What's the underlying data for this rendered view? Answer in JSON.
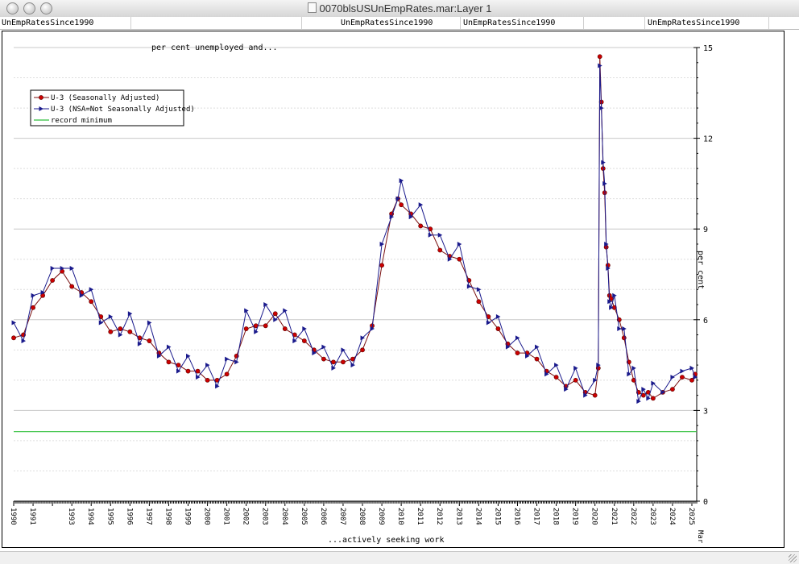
{
  "window": {
    "title": "0070blsUSUnEmpRates.mar:Layer 1"
  },
  "header_cells": [
    "UnEmpRatesSince1990",
    "",
    "UnEmpRatesSince1990",
    "UnEmpRatesSince1990",
    "",
    "UnEmpRatesSince1990"
  ],
  "chart_data": {
    "type": "line",
    "title": "per cent unemployed and...",
    "xlabel": "...actively seeking work",
    "ylabel": "per cent",
    "ylim": [
      0,
      15
    ],
    "yticks": [
      0,
      3,
      6,
      9,
      12,
      15
    ],
    "xlim": [
      1990,
      2025.25
    ],
    "year_ticks": [
      1990,
      1991,
      1993,
      1994,
      1995,
      1996,
      1997,
      1998,
      1999,
      2000,
      2001,
      2002,
      2003,
      2004,
      2005,
      2006,
      2007,
      2008,
      2009,
      2010,
      2011,
      2012,
      2013,
      2014,
      2015,
      2016,
      2017,
      2018,
      2019,
      2020,
      2021,
      2022,
      2023,
      2024,
      2025
    ],
    "x_end_label": "Mar",
    "grid": true,
    "legend_position": "top-left",
    "series": [
      {
        "name": "U-3 (Seasonally Adjusted)",
        "color": "#cc0000",
        "line_color": "#7a1010",
        "marker": "circle",
        "points": [
          [
            1990.0,
            5.4
          ],
          [
            1990.5,
            5.5
          ],
          [
            1991.0,
            6.4
          ],
          [
            1991.5,
            6.8
          ],
          [
            1992.0,
            7.3
          ],
          [
            1992.5,
            7.6
          ],
          [
            1993.0,
            7.1
          ],
          [
            1993.5,
            6.9
          ],
          [
            1994.0,
            6.6
          ],
          [
            1994.5,
            6.1
          ],
          [
            1995.0,
            5.6
          ],
          [
            1995.5,
            5.7
          ],
          [
            1996.0,
            5.6
          ],
          [
            1996.5,
            5.4
          ],
          [
            1997.0,
            5.3
          ],
          [
            1997.5,
            4.9
          ],
          [
            1998.0,
            4.6
          ],
          [
            1998.5,
            4.5
          ],
          [
            1999.0,
            4.3
          ],
          [
            1999.5,
            4.3
          ],
          [
            2000.0,
            4.0
          ],
          [
            2000.5,
            4.0
          ],
          [
            2001.0,
            4.2
          ],
          [
            2001.5,
            4.8
          ],
          [
            2002.0,
            5.7
          ],
          [
            2002.5,
            5.8
          ],
          [
            2003.0,
            5.8
          ],
          [
            2003.5,
            6.2
          ],
          [
            2004.0,
            5.7
          ],
          [
            2004.5,
            5.5
          ],
          [
            2005.0,
            5.3
          ],
          [
            2005.5,
            5.0
          ],
          [
            2006.0,
            4.7
          ],
          [
            2006.5,
            4.6
          ],
          [
            2007.0,
            4.6
          ],
          [
            2007.5,
            4.7
          ],
          [
            2008.0,
            5.0
          ],
          [
            2008.5,
            5.8
          ],
          [
            2009.0,
            7.8
          ],
          [
            2009.5,
            9.5
          ],
          [
            2009.83,
            10.0
          ],
          [
            2010.0,
            9.8
          ],
          [
            2010.5,
            9.5
          ],
          [
            2011.0,
            9.1
          ],
          [
            2011.5,
            9.0
          ],
          [
            2012.0,
            8.3
          ],
          [
            2012.5,
            8.1
          ],
          [
            2013.0,
            8.0
          ],
          [
            2013.5,
            7.3
          ],
          [
            2014.0,
            6.6
          ],
          [
            2014.5,
            6.1
          ],
          [
            2015.0,
            5.7
          ],
          [
            2015.5,
            5.2
          ],
          [
            2016.0,
            4.9
          ],
          [
            2016.5,
            4.9
          ],
          [
            2017.0,
            4.7
          ],
          [
            2017.5,
            4.3
          ],
          [
            2018.0,
            4.1
          ],
          [
            2018.5,
            3.8
          ],
          [
            2019.0,
            4.0
          ],
          [
            2019.5,
            3.6
          ],
          [
            2020.0,
            3.5
          ],
          [
            2020.17,
            4.4
          ],
          [
            2020.25,
            14.7
          ],
          [
            2020.33,
            13.2
          ],
          [
            2020.42,
            11.0
          ],
          [
            2020.5,
            10.2
          ],
          [
            2020.58,
            8.4
          ],
          [
            2020.67,
            7.8
          ],
          [
            2020.75,
            6.8
          ],
          [
            2020.83,
            6.7
          ],
          [
            2021.0,
            6.4
          ],
          [
            2021.25,
            6.0
          ],
          [
            2021.5,
            5.4
          ],
          [
            2021.75,
            4.6
          ],
          [
            2022.0,
            4.0
          ],
          [
            2022.25,
            3.6
          ],
          [
            2022.5,
            3.5
          ],
          [
            2022.75,
            3.6
          ],
          [
            2023.0,
            3.4
          ],
          [
            2023.5,
            3.6
          ],
          [
            2024.0,
            3.7
          ],
          [
            2024.5,
            4.1
          ],
          [
            2025.0,
            4.0
          ],
          [
            2025.17,
            4.2
          ]
        ]
      },
      {
        "name": "U-3 (NSA=Not Seasonally Adjusted)",
        "color": "#1a1a8c",
        "line_color": "#1a1a8c",
        "marker": "triangle",
        "points": [
          [
            1990.0,
            5.9
          ],
          [
            1990.5,
            5.3
          ],
          [
            1991.0,
            6.8
          ],
          [
            1991.5,
            6.9
          ],
          [
            1992.0,
            7.7
          ],
          [
            1992.5,
            7.7
          ],
          [
            1993.0,
            7.7
          ],
          [
            1993.5,
            6.8
          ],
          [
            1994.0,
            7.0
          ],
          [
            1994.5,
            5.9
          ],
          [
            1995.0,
            6.1
          ],
          [
            1995.5,
            5.5
          ],
          [
            1996.0,
            6.2
          ],
          [
            1996.5,
            5.2
          ],
          [
            1997.0,
            5.9
          ],
          [
            1997.5,
            4.8
          ],
          [
            1998.0,
            5.1
          ],
          [
            1998.5,
            4.3
          ],
          [
            1999.0,
            4.8
          ],
          [
            1999.5,
            4.1
          ],
          [
            2000.0,
            4.5
          ],
          [
            2000.5,
            3.8
          ],
          [
            2001.0,
            4.7
          ],
          [
            2001.5,
            4.6
          ],
          [
            2002.0,
            6.3
          ],
          [
            2002.5,
            5.6
          ],
          [
            2003.0,
            6.5
          ],
          [
            2003.5,
            6.0
          ],
          [
            2004.0,
            6.3
          ],
          [
            2004.5,
            5.3
          ],
          [
            2005.0,
            5.7
          ],
          [
            2005.5,
            4.9
          ],
          [
            2006.0,
            5.1
          ],
          [
            2006.5,
            4.4
          ],
          [
            2007.0,
            5.0
          ],
          [
            2007.5,
            4.5
          ],
          [
            2008.0,
            5.4
          ],
          [
            2008.5,
            5.7
          ],
          [
            2009.0,
            8.5
          ],
          [
            2009.5,
            9.4
          ],
          [
            2009.83,
            10.0
          ],
          [
            2010.0,
            10.6
          ],
          [
            2010.5,
            9.4
          ],
          [
            2011.0,
            9.8
          ],
          [
            2011.5,
            8.8
          ],
          [
            2012.0,
            8.8
          ],
          [
            2012.5,
            8.0
          ],
          [
            2013.0,
            8.5
          ],
          [
            2013.5,
            7.1
          ],
          [
            2014.0,
            7.0
          ],
          [
            2014.5,
            5.9
          ],
          [
            2015.0,
            6.1
          ],
          [
            2015.5,
            5.1
          ],
          [
            2016.0,
            5.4
          ],
          [
            2016.5,
            4.8
          ],
          [
            2017.0,
            5.1
          ],
          [
            2017.5,
            4.2
          ],
          [
            2018.0,
            4.5
          ],
          [
            2018.5,
            3.7
          ],
          [
            2019.0,
            4.4
          ],
          [
            2019.5,
            3.5
          ],
          [
            2020.0,
            4.0
          ],
          [
            2020.17,
            4.5
          ],
          [
            2020.25,
            14.4
          ],
          [
            2020.33,
            13.0
          ],
          [
            2020.42,
            11.2
          ],
          [
            2020.5,
            10.5
          ],
          [
            2020.58,
            8.5
          ],
          [
            2020.67,
            7.7
          ],
          [
            2020.75,
            6.6
          ],
          [
            2020.83,
            6.4
          ],
          [
            2021.0,
            6.8
          ],
          [
            2021.25,
            5.7
          ],
          [
            2021.5,
            5.7
          ],
          [
            2021.75,
            4.2
          ],
          [
            2022.0,
            4.4
          ],
          [
            2022.25,
            3.3
          ],
          [
            2022.5,
            3.7
          ],
          [
            2022.75,
            3.4
          ],
          [
            2023.0,
            3.9
          ],
          [
            2023.5,
            3.6
          ],
          [
            2024.0,
            4.1
          ],
          [
            2024.5,
            4.3
          ],
          [
            2025.0,
            4.4
          ],
          [
            2025.17,
            4.1
          ]
        ]
      },
      {
        "name": "record minimum",
        "color": "#2fbf3a",
        "line_color": "#2fbf3a",
        "marker": "none",
        "points": [
          [
            1990.0,
            2.3
          ],
          [
            2025.25,
            2.3
          ]
        ]
      }
    ]
  }
}
